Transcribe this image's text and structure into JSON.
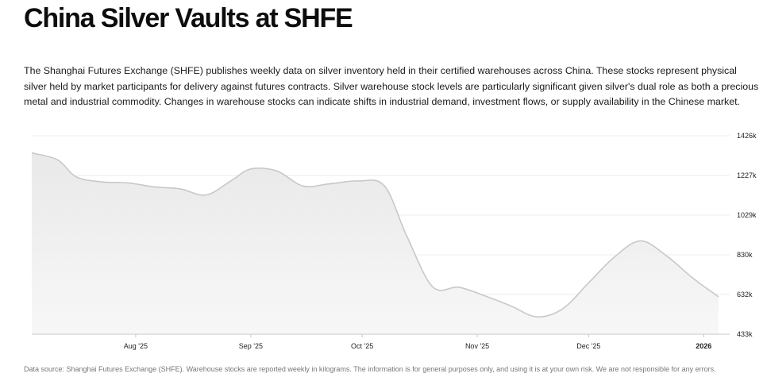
{
  "page": {
    "title": "China Silver Vaults at SHFE",
    "description": "The Shanghai Futures Exchange (SHFE) publishes weekly data on silver inventory held in their certified warehouses across China. These stocks represent physical silver held by market participants for delivery against futures contracts. Silver warehouse stock levels are particularly significant given silver's dual role as both a precious metal and industrial commodity. Changes in warehouse stocks can indicate shifts in industrial demand, investment flows, or supply availability in the Chinese market.",
    "footer": "Data source: Shanghai Futures Exchange (SHFE). Warehouse stocks are reported weekly in kilograms. The information is for general purposes only, and using it is at your own risk. We are not responsible for any errors."
  },
  "colors": {
    "line": "#c8c8c8",
    "area_top": "#e9e9e9",
    "area_bottom": "#f7f7f7",
    "grid": "#ececec",
    "axis": "#c8c8c8"
  },
  "chart_data": {
    "type": "area",
    "title": "",
    "xlabel": "",
    "ylabel": "",
    "y_unit": "k",
    "ylim": [
      433,
      1426
    ],
    "y_ticks": [
      {
        "value": 1426,
        "label": "1426k"
      },
      {
        "value": 1227,
        "label": "1227k"
      },
      {
        "value": 1029,
        "label": "1029k"
      },
      {
        "value": 830,
        "label": "830k"
      },
      {
        "value": 632,
        "label": "632k"
      },
      {
        "value": 433,
        "label": "433k"
      }
    ],
    "xlim": [
      "2025-07-04",
      "2026-01-08"
    ],
    "x_ticks": [
      {
        "date": "2025-08-01",
        "label": "Aug '25",
        "bold": false
      },
      {
        "date": "2025-09-01",
        "label": "Sep '25",
        "bold": false
      },
      {
        "date": "2025-10-01",
        "label": "Oct '25",
        "bold": false
      },
      {
        "date": "2025-11-01",
        "label": "Nov '25",
        "bold": false
      },
      {
        "date": "2025-12-01",
        "label": "Dec '25",
        "bold": false
      },
      {
        "date": "2026-01-01",
        "label": "2026",
        "bold": true
      }
    ],
    "grid": true,
    "legend": "none",
    "series": [
      {
        "points": [
          {
            "x": "2025-07-04",
            "y": 1340
          },
          {
            "x": "2025-07-11",
            "y": 1305
          },
          {
            "x": "2025-07-16",
            "y": 1220
          },
          {
            "x": "2025-07-23",
            "y": 1195
          },
          {
            "x": "2025-07-30",
            "y": 1190
          },
          {
            "x": "2025-08-06",
            "y": 1170
          },
          {
            "x": "2025-08-13",
            "y": 1160
          },
          {
            "x": "2025-08-20",
            "y": 1130
          },
          {
            "x": "2025-08-27",
            "y": 1205
          },
          {
            "x": "2025-09-01",
            "y": 1260
          },
          {
            "x": "2025-09-08",
            "y": 1250
          },
          {
            "x": "2025-09-15",
            "y": 1175
          },
          {
            "x": "2025-09-22",
            "y": 1185
          },
          {
            "x": "2025-09-30",
            "y": 1200
          },
          {
            "x": "2025-10-07",
            "y": 1175
          },
          {
            "x": "2025-10-13",
            "y": 925
          },
          {
            "x": "2025-10-20",
            "y": 670
          },
          {
            "x": "2025-10-27",
            "y": 668
          },
          {
            "x": "2025-11-03",
            "y": 625
          },
          {
            "x": "2025-11-10",
            "y": 575
          },
          {
            "x": "2025-11-17",
            "y": 520
          },
          {
            "x": "2025-11-24",
            "y": 560
          },
          {
            "x": "2025-12-01",
            "y": 690
          },
          {
            "x": "2025-12-08",
            "y": 820
          },
          {
            "x": "2025-12-15",
            "y": 900
          },
          {
            "x": "2025-12-22",
            "y": 825
          },
          {
            "x": "2025-12-29",
            "y": 715
          },
          {
            "x": "2026-01-05",
            "y": 620
          }
        ]
      }
    ]
  }
}
